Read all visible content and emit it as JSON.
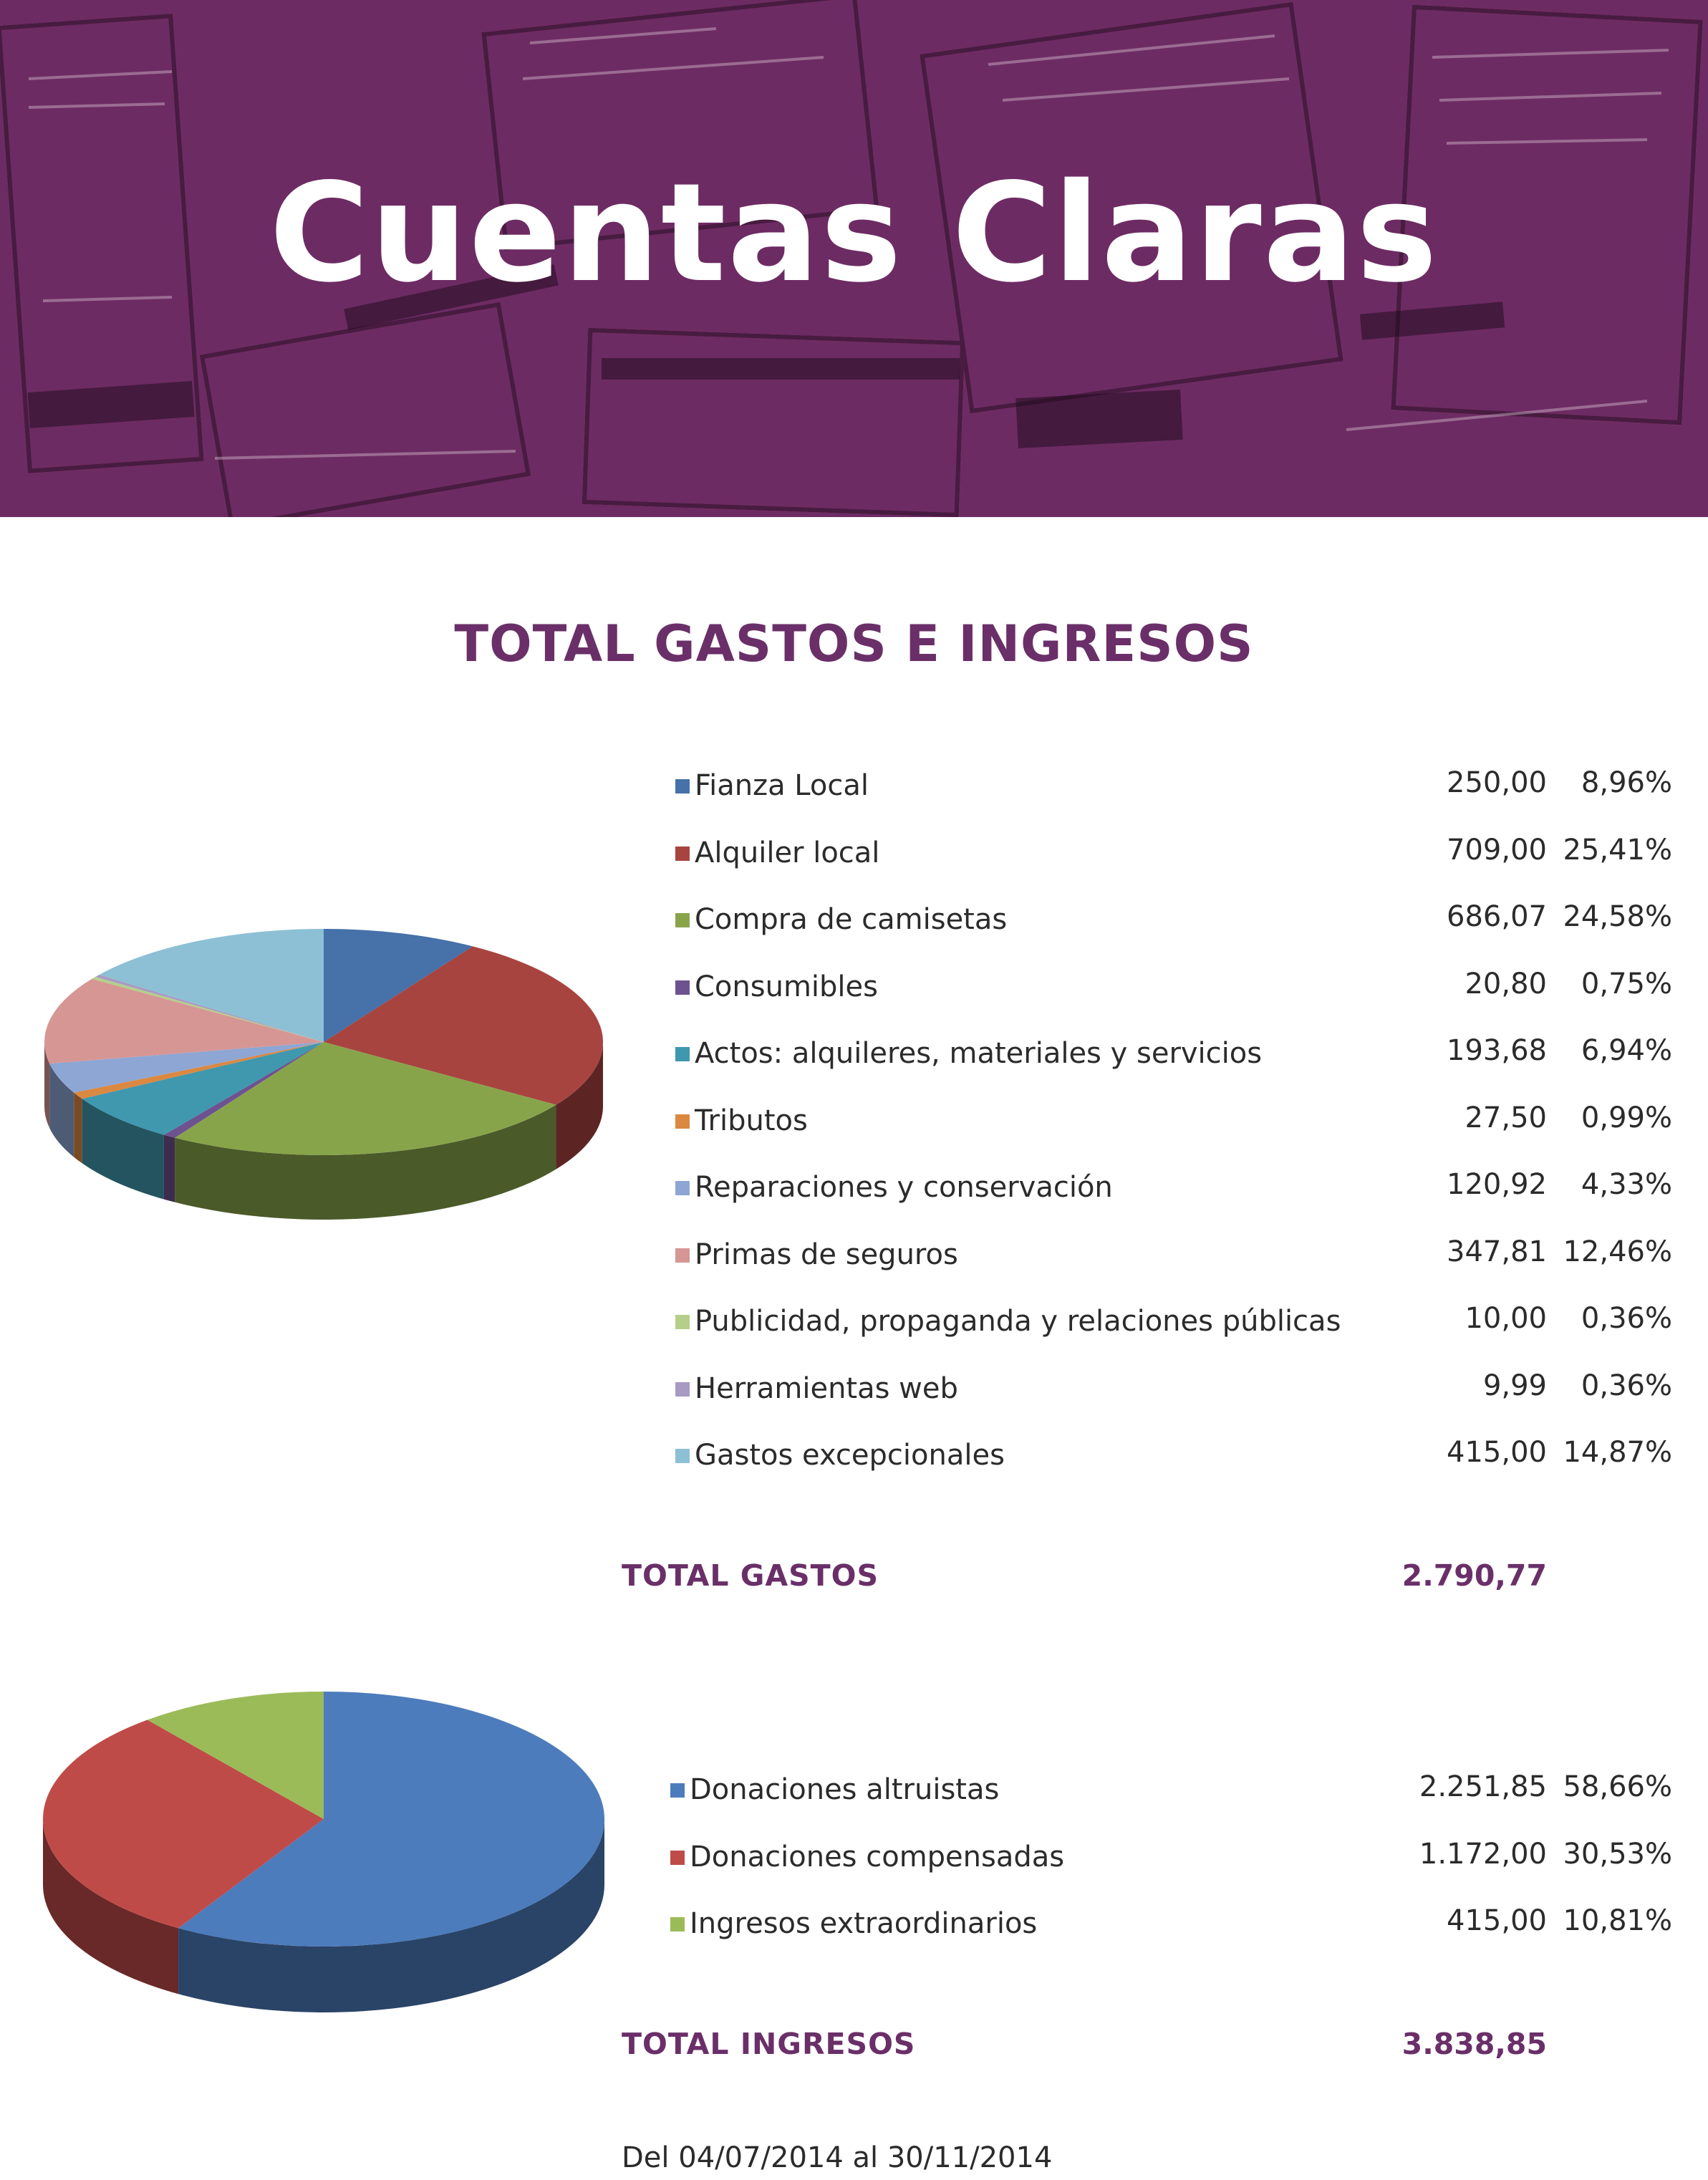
{
  "banner": {
    "title": "Cuentas Claras",
    "bg_color": "#6d2b63"
  },
  "title": "TOTAL GASTOS E INGRESOS",
  "expenses": {
    "chart_data": {
      "type": "pie",
      "categories": [
        "Fianza Local",
        "Alquiler local",
        "Compra de camisetas",
        "Consumibles",
        "Actos: alquileres, materiales y servicios",
        "Tributos",
        "Reparaciones y conservación",
        "Primas de seguros",
        "Publicidad, propaganda y relaciones públicas",
        "Herramientas web",
        "Gastos excepcionales"
      ],
      "values": [
        250.0,
        709.0,
        686.07,
        20.8,
        193.68,
        27.5,
        120.92,
        347.81,
        10.0,
        9.99,
        415.0
      ],
      "colors": [
        "#4671a9",
        "#a84440",
        "#88a44b",
        "#6d5290",
        "#3f98ae",
        "#db8841",
        "#8ea6d3",
        "#d69694",
        "#b4cf89",
        "#a99ac3",
        "#8dc0d4"
      ]
    },
    "items": [
      {
        "label": "Fianza Local",
        "value": "250,00",
        "pct": "8,96%",
        "color": "#4671a9"
      },
      {
        "label": "Alquiler local",
        "value": "709,00",
        "pct": "25,41%",
        "color": "#a84440"
      },
      {
        "label": "Compra de camisetas",
        "value": "686,07",
        "pct": "24,58%",
        "color": "#88a44b"
      },
      {
        "label": "Consumibles",
        "value": "20,80",
        "pct": "0,75%",
        "color": "#6d5290"
      },
      {
        "label": "Actos: alquileres, materiales y servicios",
        "value": "193,68",
        "pct": "6,94%",
        "color": "#3f98ae"
      },
      {
        "label": "Tributos",
        "value": "27,50",
        "pct": "0,99%",
        "color": "#db8841"
      },
      {
        "label": "Reparaciones y conservación",
        "value": "120,92",
        "pct": "4,33%",
        "color": "#8ea6d3"
      },
      {
        "label": "Primas de seguros",
        "value": "347,81",
        "pct": "12,46%",
        "color": "#d69694"
      },
      {
        "label": "Publicidad, propaganda y relaciones públicas",
        "value": "10,00",
        "pct": "0,36%",
        "color": "#b4cf89"
      },
      {
        "label": "Herramientas web",
        "value": "9,99",
        "pct": "0,36%",
        "color": "#a99ac3"
      },
      {
        "label": "Gastos excepcionales",
        "value": "415,00",
        "pct": "14,87%",
        "color": "#8dc0d4"
      }
    ],
    "total_label": "TOTAL GASTOS",
    "total_value": "2.790,77"
  },
  "income": {
    "chart_data": {
      "type": "pie",
      "categories": [
        "Donaciones altruistas",
        "Donaciones compensadas",
        "Ingresos extraordinarios"
      ],
      "values": [
        2251.85,
        1172.0,
        415.0
      ],
      "colors": [
        "#4c7cbc",
        "#bf4b48",
        "#9bbb59"
      ]
    },
    "items": [
      {
        "label": "Donaciones altruistas",
        "value": "2.251,85",
        "pct": "58,66%",
        "color": "#4c7cbc"
      },
      {
        "label": "Donaciones compensadas",
        "value": "1.172,00",
        "pct": "30,53%",
        "color": "#bf4b48"
      },
      {
        "label": "Ingresos extraordinarios",
        "value": "415,00",
        "pct": "10,81%",
        "color": "#9bbb59"
      }
    ],
    "total_label": "TOTAL INGRESOS",
    "total_value": "3.838,85"
  },
  "period": "Del 04/07/2014 al 30/11/2014"
}
